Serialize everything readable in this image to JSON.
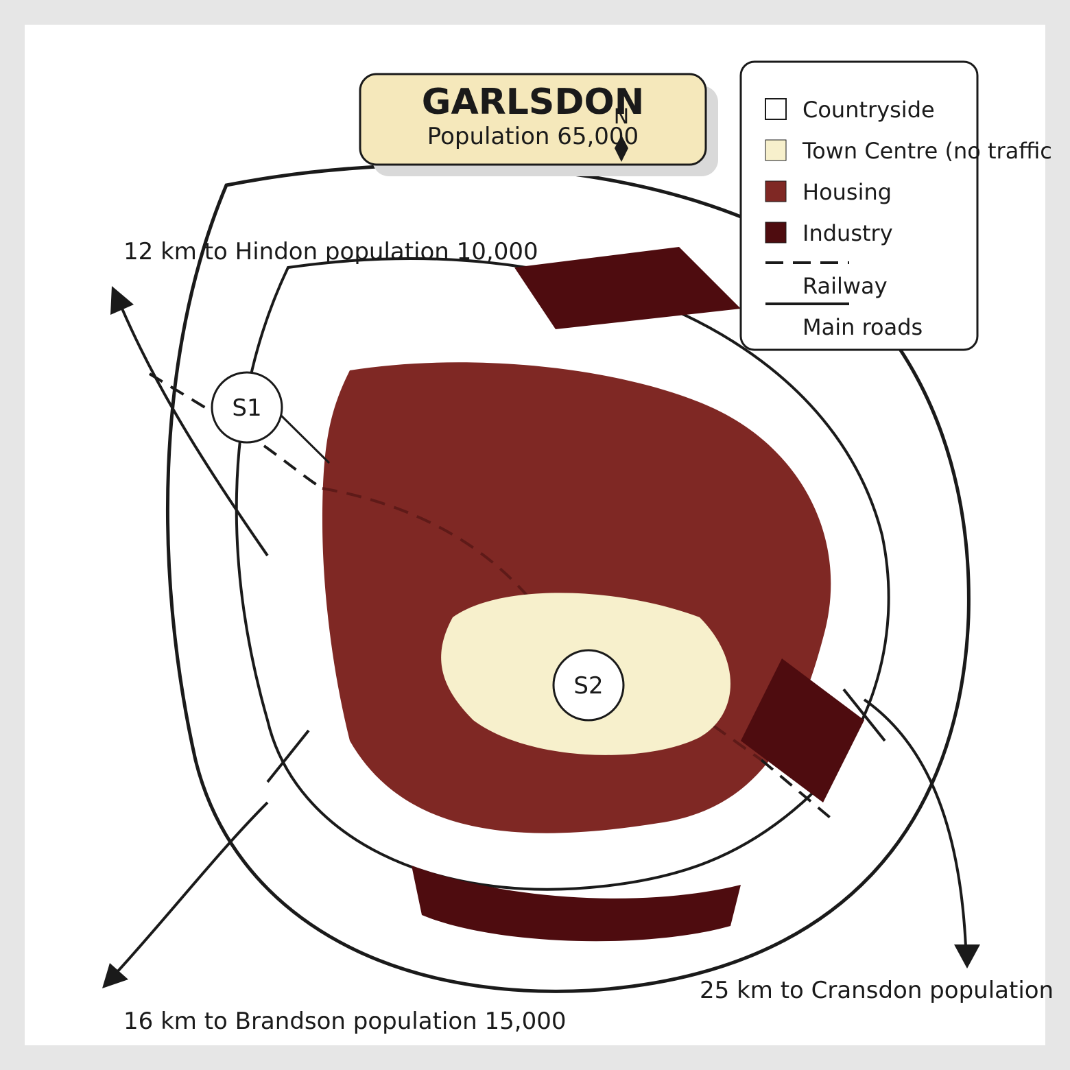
{
  "title": "GARLSDON",
  "population": "Population 65,000",
  "north_label": "N",
  "legend": {
    "items": [
      {
        "label": "Countryside",
        "swatch": "box",
        "color": "#ffffff"
      },
      {
        "label": "Town Centre (no traffic",
        "swatch": "box",
        "color": "#f7f0cc"
      },
      {
        "label": "Housing",
        "swatch": "box",
        "color": "#7f2824"
      },
      {
        "label": "Industry",
        "swatch": "box",
        "color": "#4e0c0f"
      },
      {
        "label": "Railway",
        "swatch": "dashed-line",
        "color": "#1a1a1a"
      },
      {
        "label": "Main roads",
        "swatch": "solid-line",
        "color": "#1a1a1a"
      }
    ]
  },
  "destinations": {
    "hindon": "12 km to Hindon population 10,000",
    "brandson": "16 km to Brandson population 15,000",
    "cransdon": "25 km to Cransdon population"
  },
  "stations": {
    "s1": "S1",
    "s2": "S2"
  },
  "colors": {
    "countryside": "#ffffff",
    "town_centre": "#f7f0cc",
    "housing": "#7f2824",
    "industry": "#4e0c0f",
    "title_box": "#f5e8bb",
    "line": "#1a1a1a"
  }
}
